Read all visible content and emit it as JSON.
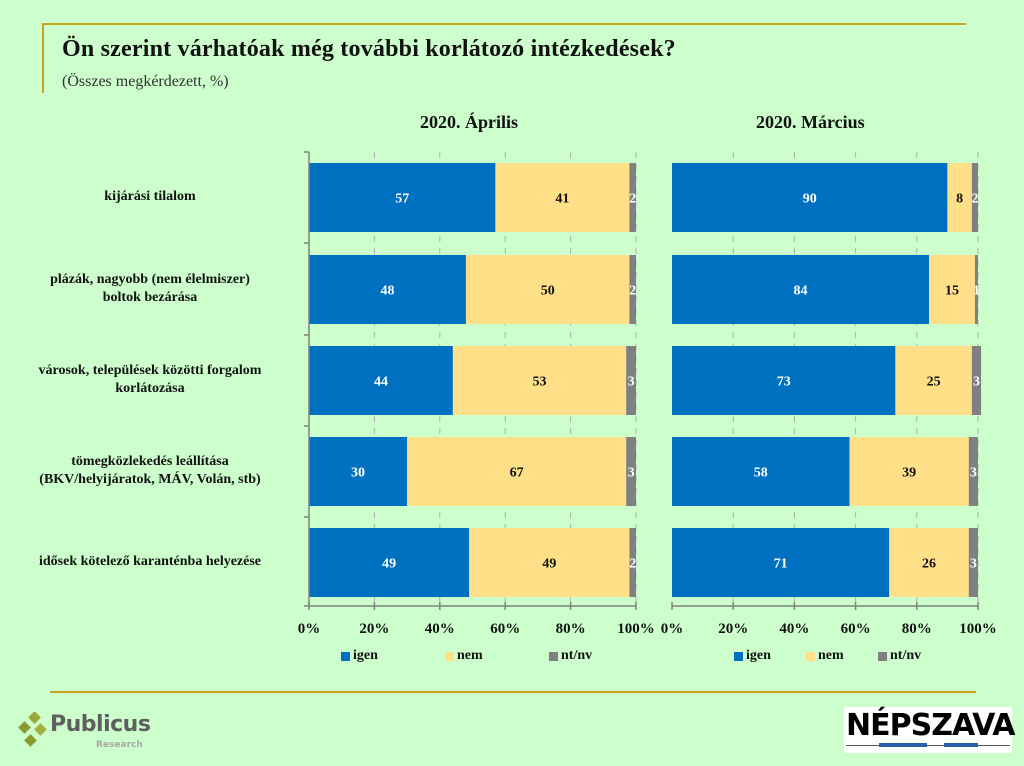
{
  "header": {
    "title": "Ön szerint várhatóak még további korlátozó intézkedések?",
    "subtitle": "(Összes megkérdezett, %)"
  },
  "colors": {
    "igen": "#0070c0",
    "nem": "#ffdf88",
    "ntnv": "#808080",
    "background": "#ccffcc",
    "accent_line": "#c9a11a"
  },
  "chart_data": [
    {
      "type": "bar",
      "orientation": "horizontal-stacked-100",
      "title": "2020. Április",
      "categories": [
        "kijárási tilalom",
        "plázák, nagyobb (nem élelmiszer) boltok bezárása",
        "városok, települések közötti forgalom korlátozása",
        "tömegközlekedés leállítása (BKV/helyijáratok, MÁV, Volán, stb)",
        "idősek kötelező karanténba helyezése"
      ],
      "series": [
        {
          "name": "igen",
          "values": [
            57,
            48,
            44,
            30,
            49
          ]
        },
        {
          "name": "nem",
          "values": [
            41,
            50,
            53,
            67,
            49
          ]
        },
        {
          "name": "nt/nv",
          "values": [
            2,
            2,
            3,
            3,
            2
          ]
        }
      ],
      "xlim": [
        0,
        100
      ],
      "xticks": [
        "0%",
        "20%",
        "40%",
        "60%",
        "80%",
        "100%"
      ],
      "grid": true,
      "legend": "bottom"
    },
    {
      "type": "bar",
      "orientation": "horizontal-stacked-100",
      "title": "2020. Március",
      "categories": [
        "kijárási tilalom",
        "plázák, nagyobb (nem élelmiszer) boltok bezárása",
        "városok, települések közötti forgalom korlátozása",
        "tömegközlekedés leállítása (BKV/helyijáratok, MÁV, Volán, stb)",
        "idősek kötelező karanténba helyezése"
      ],
      "series": [
        {
          "name": "igen",
          "values": [
            90,
            84,
            73,
            58,
            71
          ]
        },
        {
          "name": "nem",
          "values": [
            8,
            15,
            25,
            39,
            26
          ]
        },
        {
          "name": "nt/nv",
          "values": [
            2,
            1,
            3,
            3,
            3
          ]
        }
      ],
      "xlim": [
        0,
        100
      ],
      "xticks": [
        "0%",
        "20%",
        "40%",
        "60%",
        "80%",
        "100%"
      ],
      "grid": true,
      "legend": "bottom"
    }
  ],
  "category_labels": [
    [
      "kijárási tilalom"
    ],
    [
      "plázák, nagyobb (nem élelmiszer)",
      "boltok bezárása"
    ],
    [
      "városok, települések közötti forgalom",
      "korlátozása"
    ],
    [
      "tömegközlekedés leállítása",
      "(BKV/helyijáratok, MÁV, Volán, stb)"
    ],
    [
      "idősek kötelező karanténba helyezése"
    ]
  ],
  "legend": {
    "items": [
      "igen",
      "nem",
      "nt/nv"
    ]
  },
  "logos": {
    "publicus_name": "Publicus",
    "publicus_sub": "Research",
    "nepszava": "NÉPSZAVA"
  }
}
